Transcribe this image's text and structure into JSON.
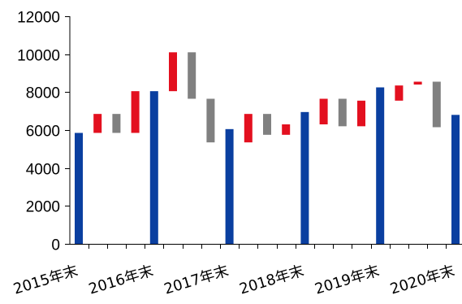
{
  "chart_data": {
    "type": "bar",
    "subtype": "waterfall",
    "title": "",
    "xlabel": "",
    "ylabel": "",
    "ylim": [
      0,
      12000
    ],
    "yticks": [
      0,
      2000,
      4000,
      6000,
      8000,
      10000,
      12000
    ],
    "grid": false,
    "legend": "none",
    "colors": {
      "total": "#0a3fa0",
      "increase": "#e3101f",
      "decrease": "#808080"
    },
    "x_labels": [
      "2015年末",
      "2016年末",
      "2017年末",
      "2018年末",
      "2019年末",
      "2020年末"
    ],
    "bars": [
      {
        "slot": 0,
        "kind": "total",
        "low": 0,
        "high": 5850
      },
      {
        "slot": 1,
        "kind": "increase",
        "low": 5850,
        "high": 6850
      },
      {
        "slot": 2,
        "kind": "decrease",
        "low": 5850,
        "high": 6850
      },
      {
        "slot": 3,
        "kind": "increase",
        "low": 5850,
        "high": 8050
      },
      {
        "slot": 4,
        "kind": "total",
        "low": 0,
        "high": 8050
      },
      {
        "slot": 5,
        "kind": "increase",
        "low": 8050,
        "high": 10100
      },
      {
        "slot": 6,
        "kind": "decrease",
        "low": 7650,
        "high": 10100
      },
      {
        "slot": 7,
        "kind": "decrease",
        "low": 5350,
        "high": 7650
      },
      {
        "slot": 8,
        "kind": "total",
        "low": 0,
        "high": 6050
      },
      {
        "slot": 9,
        "kind": "increase",
        "low": 5350,
        "high": 6850
      },
      {
        "slot": 10,
        "kind": "decrease",
        "low": 5750,
        "high": 6850
      },
      {
        "slot": 11,
        "kind": "increase",
        "low": 5750,
        "high": 6300
      },
      {
        "slot": 12,
        "kind": "total",
        "low": 0,
        "high": 6950
      },
      {
        "slot": 13,
        "kind": "increase",
        "low": 6300,
        "high": 7650
      },
      {
        "slot": 14,
        "kind": "decrease",
        "low": 6200,
        "high": 7650
      },
      {
        "slot": 15,
        "kind": "increase",
        "low": 6200,
        "high": 7550
      },
      {
        "slot": 16,
        "kind": "total",
        "low": 0,
        "high": 8250
      },
      {
        "slot": 17,
        "kind": "increase",
        "low": 7550,
        "high": 8350
      },
      {
        "slot": 18,
        "kind": "increase",
        "low": 8400,
        "high": 8550
      },
      {
        "slot": 19,
        "kind": "decrease",
        "low": 6150,
        "high": 8550
      },
      {
        "slot": 20,
        "kind": "total",
        "low": 0,
        "high": 6800
      }
    ]
  }
}
